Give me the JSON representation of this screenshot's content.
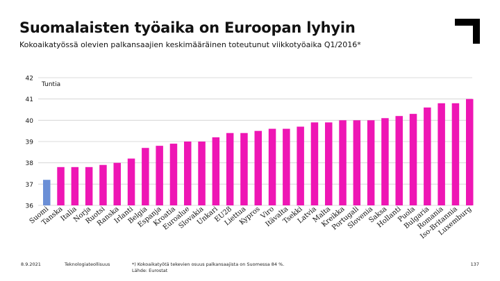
{
  "title": "Suomalaisten työaika on Euroopan lyhyin",
  "subtitle": "Kokoaikatyössä olevien palkansaajien keskimääräinen toteutunut viikkotyöaika Q1/2016*",
  "footer": {
    "date": "8.9.2021",
    "organization": "Teknologiateollisuus",
    "note": "*) Kokoaikatyötä tekevien osuus palkansaajista on Suomessa 84 %.",
    "source": "Lähde: Eurostat",
    "page": "137"
  },
  "colors": {
    "highlight": "#6b8fd6",
    "bar": "#ee16b4",
    "grid": "#cfcfcf",
    "logo": "#000000"
  },
  "logo": {
    "icon": "corner-bracket-logo"
  },
  "chart_data": {
    "type": "bar",
    "title": "Suomalaisten työaika on Euroopan lyhyin",
    "ylabel": "Tuntia",
    "xlabel": "",
    "ylim": [
      36,
      42
    ],
    "yticks": [
      36,
      37,
      38,
      39,
      40,
      41,
      42
    ],
    "grid": true,
    "categories": [
      "Suomi",
      "Tanska",
      "Italia",
      "Norja",
      "Ruotsi",
      "Ranska",
      "Irlanti",
      "Belgia",
      "Espanja",
      "Kroatia",
      "Euroalue",
      "Slovakia",
      "Unkari",
      "EU28",
      "Liettua",
      "Kypros",
      "Viro",
      "Itävalta",
      "Tsekki",
      "Latvia",
      "Malta",
      "Kreikka",
      "Portugali",
      "Slovenia",
      "Saksa",
      "Hollanti",
      "Puola",
      "Bulgaria",
      "Romania",
      "Iso-Britannia",
      "Luxemburg"
    ],
    "values": [
      37.2,
      37.8,
      37.8,
      37.8,
      37.9,
      38.0,
      38.2,
      38.7,
      38.8,
      38.9,
      39.0,
      39.0,
      39.2,
      39.4,
      39.4,
      39.5,
      39.6,
      39.6,
      39.7,
      39.9,
      39.9,
      40.0,
      40.0,
      40.0,
      40.1,
      40.2,
      40.3,
      40.6,
      40.8,
      40.8,
      41.0
    ],
    "highlight_index": 0
  }
}
